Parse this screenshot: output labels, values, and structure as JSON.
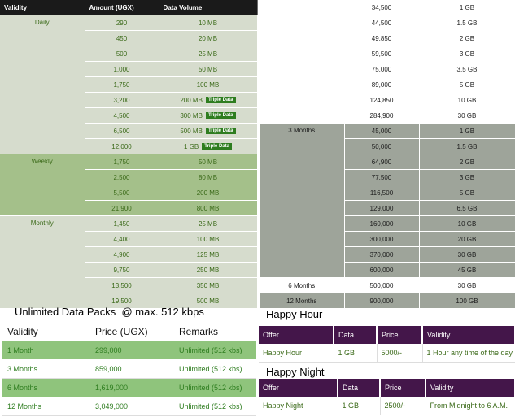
{
  "left_table": {
    "headers": [
      "Validity",
      "Amount (UGX)",
      "Data Volume"
    ],
    "daily": {
      "label": "Daily",
      "rows": [
        {
          "amount": "290",
          "volume": "10 MB",
          "badge": ""
        },
        {
          "amount": "450",
          "volume": "20 MB",
          "badge": ""
        },
        {
          "amount": "500",
          "volume": "25 MB",
          "badge": ""
        },
        {
          "amount": "1,000",
          "volume": "50 MB",
          "badge": ""
        },
        {
          "amount": "1,750",
          "volume": "100 MB",
          "badge": ""
        },
        {
          "amount": "3,200",
          "volume": "200 MB",
          "badge": "Triple Data"
        },
        {
          "amount": "4,500",
          "volume": "300 MB",
          "badge": "Triple Data"
        },
        {
          "amount": "6,500",
          "volume": "500 MB",
          "badge": "Triple Data"
        },
        {
          "amount": "12,000",
          "volume": "1 GB",
          "badge": "Triple Data"
        }
      ]
    },
    "weekly": {
      "label": "Weekly",
      "rows": [
        {
          "amount": "1,750",
          "volume": "50 MB"
        },
        {
          "amount": "2,500",
          "volume": "80 MB"
        },
        {
          "amount": "5,500",
          "volume": "200 MB"
        },
        {
          "amount": "21,900",
          "volume": "800 MB"
        }
      ]
    },
    "monthly": {
      "label": "Monthly",
      "rows": [
        {
          "amount": "1,450",
          "volume": "25 MB"
        },
        {
          "amount": "4,400",
          "volume": "100 MB"
        },
        {
          "amount": "4,900",
          "volume": "125 MB"
        },
        {
          "amount": "9,750",
          "volume": "250 MB"
        },
        {
          "amount": "13,500",
          "volume": "350 MB"
        },
        {
          "amount": "19,500",
          "volume": "500 MB"
        }
      ]
    }
  },
  "right_table": {
    "monthly_rows": [
      {
        "amount": "34,500",
        "volume": "1 GB"
      },
      {
        "amount": "44,500",
        "volume": "1.5 GB"
      },
      {
        "amount": "49,850",
        "volume": "2 GB"
      },
      {
        "amount": "59,500",
        "volume": "3 GB"
      },
      {
        "amount": "75,000",
        "volume": "3.5 GB"
      },
      {
        "amount": "89,000",
        "volume": "5 GB"
      },
      {
        "amount": "124,850",
        "volume": "10 GB"
      },
      {
        "amount": "284,900",
        "volume": "30 GB"
      }
    ],
    "three_months": {
      "label": "3 Months",
      "rows": [
        {
          "amount": "45,000",
          "volume": "1 GB"
        },
        {
          "amount": "50,000",
          "volume": "1.5 GB"
        },
        {
          "amount": "64,900",
          "volume": "2 GB"
        },
        {
          "amount": "77,500",
          "volume": "3 GB"
        },
        {
          "amount": "116,500",
          "volume": "5 GB"
        },
        {
          "amount": "129,000",
          "volume": "6.5 GB"
        },
        {
          "amount": "160,000",
          "volume": "10 GB"
        },
        {
          "amount": "300,000",
          "volume": "20 GB"
        },
        {
          "amount": "370,000",
          "volume": "30 GB"
        },
        {
          "amount": "600,000",
          "volume": "45 GB"
        }
      ]
    },
    "six_months": {
      "label": "6 Months",
      "amount": "500,000",
      "volume": "30 GB"
    },
    "twelve_months": {
      "label": "12 Months",
      "amount": "900,000",
      "volume": "100 GB"
    }
  },
  "unlimited": {
    "title": "Unlimited Data Packs  @ max. 512 kbps",
    "headers": [
      "Validity",
      "Price (UGX)",
      "Remarks"
    ],
    "rows": [
      {
        "validity": "1 Month",
        "price": "299,000",
        "remarks": "Unlimited (512 kbs)"
      },
      {
        "validity": "3 Months",
        "price": "859,000",
        "remarks": "Unlimited (512 kbs)"
      },
      {
        "validity": "6 Months",
        "price": "1,619,000",
        "remarks": "Unlimited (512 kbs)"
      },
      {
        "validity": "12 Months",
        "price": "3,049,000",
        "remarks": "Unlimited (512 kbs)"
      }
    ]
  },
  "happy_hour": {
    "title": "Happy Hour",
    "headers": [
      "Offer",
      "Data",
      "Price",
      "Validity"
    ],
    "row": {
      "offer": "Happy Hour",
      "data": "1 GB",
      "price": "5000/-",
      "validity": "1 Hour any time of the day"
    }
  },
  "happy_night": {
    "title": "Happy Night",
    "headers": [
      "Offer",
      "Data",
      "Price",
      "Validity"
    ],
    "row": {
      "offer": "Happy Night",
      "data": "1 GB",
      "price": "2500/-",
      "validity": "From Midnight to 6 A.M."
    }
  }
}
